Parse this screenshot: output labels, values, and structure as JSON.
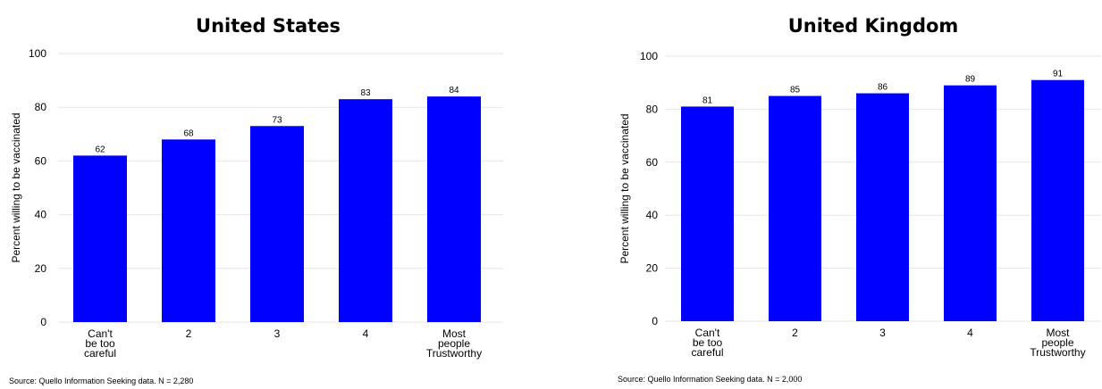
{
  "chart_data": [
    {
      "type": "bar",
      "title": "United States",
      "ylabel": "Percent willing to be vaccinated",
      "xlabel": "",
      "categories": [
        [
          "Can't",
          "be too",
          "careful"
        ],
        [
          "2"
        ],
        [
          "3"
        ],
        [
          "4"
        ],
        [
          "Most",
          "people",
          "Trustworthy"
        ]
      ],
      "values": [
        62,
        68,
        73,
        83,
        84
      ],
      "data_labels": [
        "62",
        "68",
        "73",
        "83",
        "84"
      ],
      "ylim": [
        0,
        100
      ],
      "yticks": [
        0,
        20,
        40,
        60,
        80,
        100
      ],
      "grid": true,
      "bar_color": "#0000ff",
      "source": "Source: Quello Information Seeking data. N = 2,280"
    },
    {
      "type": "bar",
      "title": "United Kingdom",
      "ylabel": "Percent willing to be vaccinated",
      "xlabel": "",
      "categories": [
        [
          "Can't",
          "be too",
          "careful"
        ],
        [
          "2"
        ],
        [
          "3"
        ],
        [
          "4"
        ],
        [
          "Most",
          "people",
          "Trustworthy"
        ]
      ],
      "values": [
        81,
        85,
        86,
        89,
        91
      ],
      "data_labels": [
        "81",
        "85",
        "86",
        "89",
        "91"
      ],
      "ylim": [
        0,
        100
      ],
      "yticks": [
        0,
        20,
        40,
        60,
        80,
        100
      ],
      "grid": true,
      "bar_color": "#0000ff",
      "source": "Source: Quello Information Seeking data. N = 2,000"
    }
  ]
}
